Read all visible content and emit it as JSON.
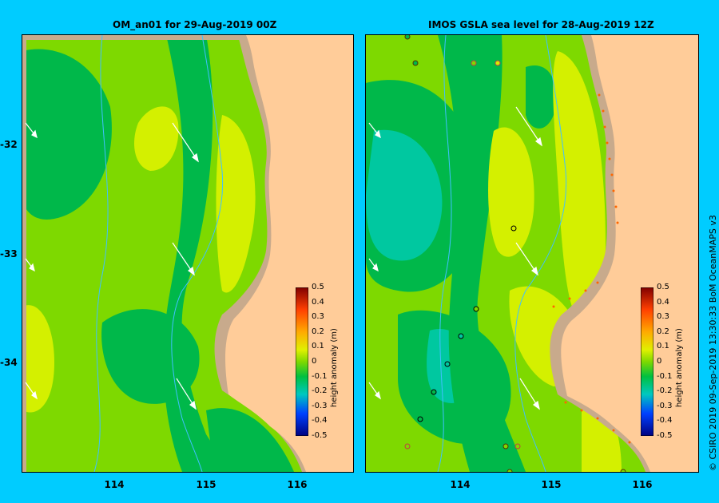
{
  "panels": [
    {
      "title": "OM_an01  for 29-Aug-2019 00Z"
    },
    {
      "title": "IMOS GSLA sea level  for 28-Aug-2019 12Z"
    }
  ],
  "axes": {
    "y_labels": [
      "-32",
      "-33",
      "-34"
    ],
    "x_labels": [
      "114",
      "115",
      "116"
    ]
  },
  "colorbar": {
    "ticks": [
      "0.5",
      "0.4",
      "0.3",
      "0.2",
      "0.1",
      "0",
      "-0.1",
      "-0.2",
      "-0.3",
      "-0.4",
      "-0.5"
    ],
    "title": "height anomaly (m)"
  },
  "credit": "© CSIRO 2019   09-Sep-2019 13:30:33 BoM OceanMAPS v3",
  "colors": {
    "background": "#00ccff",
    "land": "#ffcc99",
    "coast_shelf": "#c8aa8c",
    "anomaly_high": "#d4f000",
    "anomaly_mid": "#7ed900",
    "anomaly_low": "#00b84a",
    "anomaly_lowest": "#00c8a0"
  }
}
